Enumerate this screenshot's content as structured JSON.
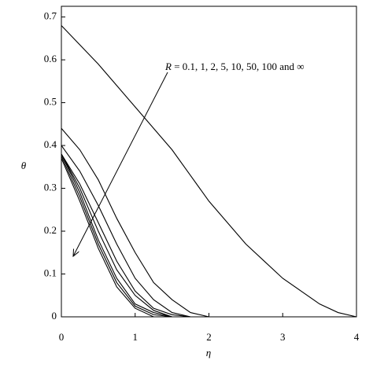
{
  "chart_data": {
    "type": "line",
    "x": [
      0,
      0.25,
      0.5,
      0.75,
      1,
      1.25,
      1.5,
      1.75,
      2,
      2.25,
      2.5,
      2.75,
      3,
      3.25,
      3.5,
      3.75,
      4
    ],
    "series": [
      {
        "color": "#000000",
        "values": [
          0.68,
          0.635,
          0.59,
          0.54,
          0.49,
          0.44,
          0.39,
          0.33,
          0.27,
          0.22,
          0.17,
          0.13,
          0.09,
          0.06,
          0.03,
          0.01,
          0
        ]
      },
      {
        "color": "#000000",
        "values": [
          0.44,
          0.39,
          0.32,
          0.23,
          0.15,
          0.08,
          0.04,
          0.01,
          0,
          0,
          0,
          0,
          0,
          0,
          0,
          0,
          0
        ]
      },
      {
        "color": "#000000",
        "values": [
          0.4,
          0.34,
          0.26,
          0.17,
          0.09,
          0.04,
          0.01,
          0,
          0,
          0,
          0,
          0,
          0,
          0,
          0,
          0,
          0
        ]
      },
      {
        "color": "#000000",
        "values": [
          0.38,
          0.31,
          0.22,
          0.13,
          0.06,
          0.02,
          0.005,
          0,
          0,
          0,
          0,
          0,
          0,
          0,
          0,
          0,
          0
        ]
      },
      {
        "color": "#000000",
        "values": [
          0.38,
          0.3,
          0.2,
          0.11,
          0.05,
          0.015,
          0,
          0,
          0,
          0,
          0,
          0,
          0,
          0,
          0,
          0,
          0
        ]
      },
      {
        "color": "#000000",
        "values": [
          0.38,
          0.29,
          0.18,
          0.09,
          0.03,
          0.01,
          0,
          0,
          0,
          0,
          0,
          0,
          0,
          0,
          0,
          0,
          0
        ]
      },
      {
        "color": "#000000",
        "values": [
          0.375,
          0.28,
          0.17,
          0.08,
          0.025,
          0.005,
          0,
          0,
          0,
          0,
          0,
          0,
          0,
          0,
          0,
          0,
          0
        ]
      },
      {
        "color": "#000000",
        "values": [
          0.37,
          0.27,
          0.16,
          0.07,
          0.02,
          0,
          0,
          0,
          0,
          0,
          0,
          0,
          0,
          0,
          0,
          0,
          0
        ]
      }
    ],
    "xlabel": "η",
    "ylabel": "θ",
    "annotation": {
      "variable": "R",
      "text": "= 0.1, 1, 2, 5, 10, 50, 100 and ∞"
    },
    "xlim": [
      0,
      4
    ],
    "ylim": [
      0,
      0.725
    ],
    "xticks": [
      0,
      1,
      2,
      3,
      4
    ],
    "yticks": [
      0,
      0.1,
      0.2,
      0.3,
      0.4,
      0.5,
      0.6,
      0.7
    ]
  }
}
